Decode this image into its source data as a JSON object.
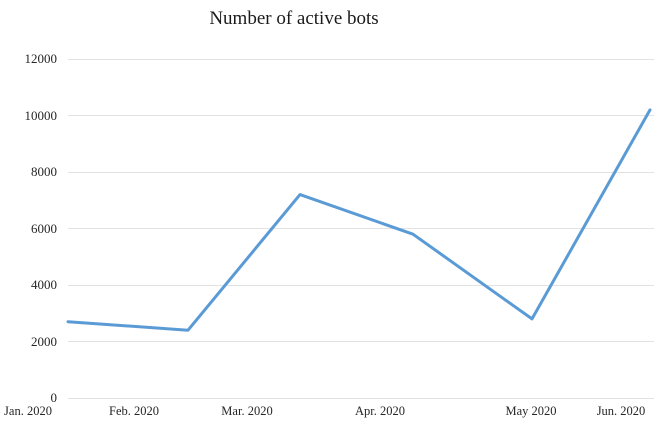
{
  "chart_data": {
    "type": "line",
    "title": "Number of active bots",
    "categories": [
      "Jan. 2020",
      "Feb. 2020",
      "Mar. 2020",
      "Apr. 2020",
      "May 2020",
      "Jun. 2020"
    ],
    "values": [
      2700,
      2400,
      7200,
      5800,
      2800,
      10200
    ],
    "series": [
      {
        "name": "Number of active bots",
        "values": [
          2700,
          2400,
          7200,
          5800,
          2800,
          10200
        ]
      }
    ],
    "xlabel": "",
    "ylabel": "",
    "ylim": [
      0,
      12000
    ],
    "y_ticks": [
      0,
      2000,
      4000,
      6000,
      8000,
      10000,
      12000
    ],
    "grid": true,
    "legend": "none",
    "line_color": "#5b9bd5",
    "gridline_color": "#e2e2e2",
    "text_color": "#262626"
  }
}
